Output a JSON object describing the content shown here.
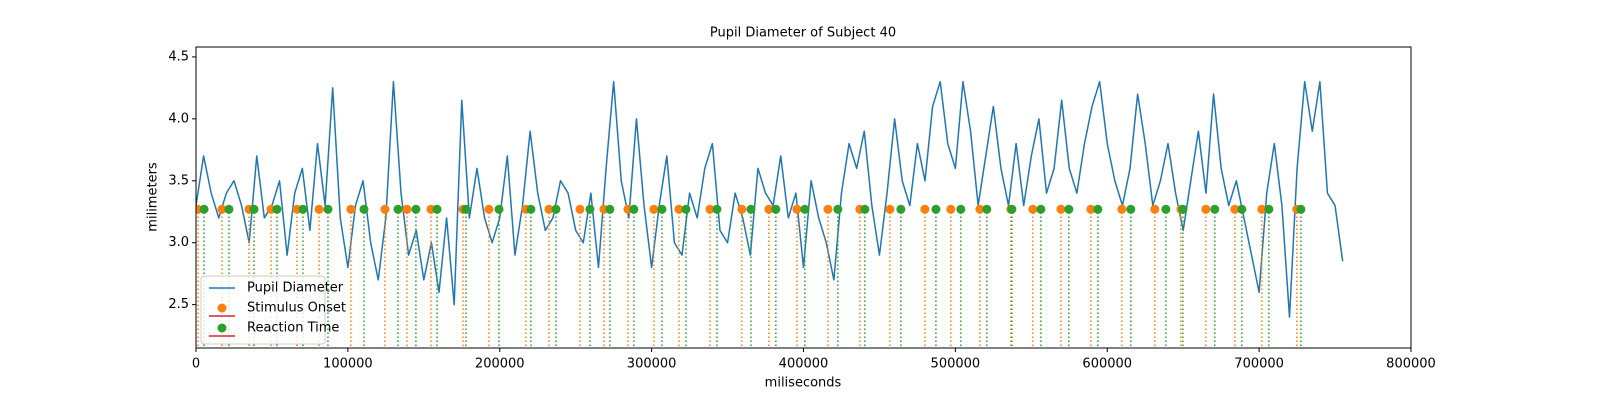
{
  "chart_data": {
    "type": "line",
    "title": "Pupil Diameter of Subject 40",
    "x_label": "miliseconds",
    "y_label": "milimeters",
    "xlim": [
      0,
      800000
    ],
    "ylim": [
      2.15,
      4.58
    ],
    "xticks": [
      0,
      100000,
      200000,
      300000,
      400000,
      500000,
      600000,
      700000,
      800000
    ],
    "yticks": [
      2.5,
      {
        "value": 3,
        "label": "3.0"
      },
      3.5,
      {
        "value": 4,
        "label": "4.0"
      },
      4.5
    ],
    "grid": false,
    "legend": "lower left",
    "series": [
      {
        "name": "Pupil Diameter",
        "type": "line",
        "color": "#1f77b4",
        "x": [
          0,
          5000,
          10000,
          15000,
          20000,
          25000,
          30000,
          35000,
          40000,
          45000,
          50000,
          55000,
          60000,
          65000,
          70000,
          75000,
          80000,
          85000,
          90000,
          95000,
          100000,
          105000,
          110000,
          115000,
          120000,
          125000,
          130000,
          135000,
          140000,
          145000,
          150000,
          155000,
          160000,
          165000,
          170000,
          175000,
          180000,
          185000,
          190000,
          195000,
          200000,
          205000,
          210000,
          215000,
          220000,
          225000,
          230000,
          235000,
          240000,
          245000,
          250000,
          255000,
          260000,
          265000,
          270000,
          275000,
          280000,
          285000,
          290000,
          295000,
          300000,
          305000,
          310000,
          315000,
          320000,
          325000,
          330000,
          335000,
          340000,
          345000,
          350000,
          355000,
          360000,
          365000,
          370000,
          375000,
          380000,
          385000,
          390000,
          395000,
          400000,
          405000,
          410000,
          415000,
          420000,
          425000,
          430000,
          435000,
          440000,
          445000,
          450000,
          455000,
          460000,
          465000,
          470000,
          475000,
          480000,
          485000,
          490000,
          495000,
          500000,
          505000,
          510000,
          515000,
          520000,
          525000,
          530000,
          535000,
          540000,
          545000,
          550000,
          555000,
          560000,
          565000,
          570000,
          575000,
          580000,
          585000,
          590000,
          595000,
          600000,
          605000,
          610000,
          615000,
          620000,
          625000,
          630000,
          635000,
          640000,
          645000,
          650000,
          655000,
          660000,
          665000,
          670000,
          675000,
          680000,
          685000,
          690000,
          695000,
          700000,
          705000,
          710000,
          715000,
          720000,
          725000,
          730000,
          735000,
          740000,
          745000,
          750000,
          755000
        ],
        "values": [
          3.3,
          3.7,
          3.4,
          3.2,
          3.4,
          3.5,
          3.3,
          3.0,
          3.7,
          3.2,
          3.3,
          3.5,
          2.9,
          3.4,
          3.6,
          3.1,
          3.8,
          3.3,
          4.25,
          3.2,
          2.8,
          3.3,
          3.5,
          3.0,
          2.7,
          3.2,
          4.3,
          3.4,
          2.9,
          3.1,
          2.7,
          3.0,
          2.6,
          3.2,
          2.5,
          4.15,
          3.2,
          3.6,
          3.2,
          3.0,
          3.2,
          3.7,
          2.9,
          3.3,
          3.9,
          3.4,
          3.1,
          3.2,
          3.5,
          3.4,
          3.1,
          3.0,
          3.4,
          2.8,
          3.6,
          4.3,
          3.5,
          3.2,
          4.0,
          3.3,
          2.8,
          3.3,
          3.7,
          3.0,
          2.9,
          3.4,
          3.2,
          3.6,
          3.8,
          3.1,
          3.0,
          3.4,
          3.2,
          2.9,
          3.6,
          3.4,
          3.3,
          3.7,
          3.2,
          3.4,
          2.8,
          3.5,
          3.2,
          3.0,
          2.7,
          3.4,
          3.8,
          3.6,
          3.9,
          3.3,
          2.9,
          3.4,
          4.0,
          3.5,
          3.3,
          3.8,
          3.5,
          4.1,
          4.3,
          3.8,
          3.6,
          4.3,
          3.9,
          3.3,
          3.7,
          4.1,
          3.6,
          3.3,
          3.8,
          3.3,
          3.7,
          4.0,
          3.4,
          3.6,
          4.15,
          3.6,
          3.4,
          3.8,
          4.1,
          4.3,
          3.8,
          3.5,
          3.3,
          3.6,
          4.2,
          3.8,
          3.3,
          3.5,
          3.8,
          3.4,
          3.1,
          3.5,
          3.9,
          3.4,
          4.2,
          3.6,
          3.3,
          3.5,
          3.2,
          2.9,
          2.6,
          3.4,
          3.8,
          3.3,
          2.4,
          3.6,
          4.3,
          3.9,
          4.3,
          3.4,
          3.3,
          2.85
        ]
      },
      {
        "name": "Stimulus Onset",
        "type": "stem",
        "color": "#ff7f0e",
        "baseline_color": "#d62728",
        "x": [
          1300,
          17100,
          34900,
          49400,
          66500,
          81000,
          102000,
          124400,
          138900,
          154700,
          175800,
          192900,
          217200,
          232400,
          252800,
          268600,
          284400,
          301500,
          318000,
          338400,
          359400,
          377200,
          395700,
          416100,
          437100,
          456900,
          479900,
          497000,
          516100,
          536500,
          551000,
          569500,
          589200,
          609600,
          631300,
          648500,
          664900,
          684000,
          701800,
          724800
        ],
        "values": [
          3.27,
          3.27,
          3.27,
          3.27,
          3.27,
          3.27,
          3.27,
          3.27,
          3.27,
          3.27,
          3.27,
          3.27,
          3.27,
          3.27,
          3.27,
          3.27,
          3.27,
          3.27,
          3.27,
          3.27,
          3.27,
          3.27,
          3.27,
          3.27,
          3.27,
          3.27,
          3.27,
          3.27,
          3.27,
          3.27,
          3.27,
          3.27,
          3.27,
          3.27,
          3.27,
          3.27,
          3.27,
          3.27,
          3.27,
          3.27
        ]
      },
      {
        "name": "Reaction Time",
        "type": "stem",
        "color": "#2ca02c",
        "baseline_color": "#d62728",
        "x": [
          5300,
          21700,
          38200,
          53300,
          70400,
          86900,
          110600,
          133000,
          144800,
          158700,
          177700,
          199500,
          220500,
          237000,
          259400,
          272500,
          288300,
          306800,
          322600,
          343000,
          365400,
          381800,
          400900,
          422600,
          440400,
          464100,
          487200,
          503600,
          520700,
          537200,
          556300,
          574700,
          593800,
          615500,
          638600,
          649800,
          670800,
          688600,
          706400,
          727500
        ],
        "values": [
          3.27,
          3.27,
          3.27,
          3.27,
          3.27,
          3.27,
          3.27,
          3.27,
          3.27,
          3.27,
          3.27,
          3.27,
          3.27,
          3.27,
          3.27,
          3.27,
          3.27,
          3.27,
          3.27,
          3.27,
          3.27,
          3.27,
          3.27,
          3.27,
          3.27,
          3.27,
          3.27,
          3.27,
          3.27,
          3.27,
          3.27,
          3.27,
          3.27,
          3.27,
          3.27,
          3.27,
          3.27,
          3.27,
          3.27,
          3.27
        ]
      }
    ]
  }
}
